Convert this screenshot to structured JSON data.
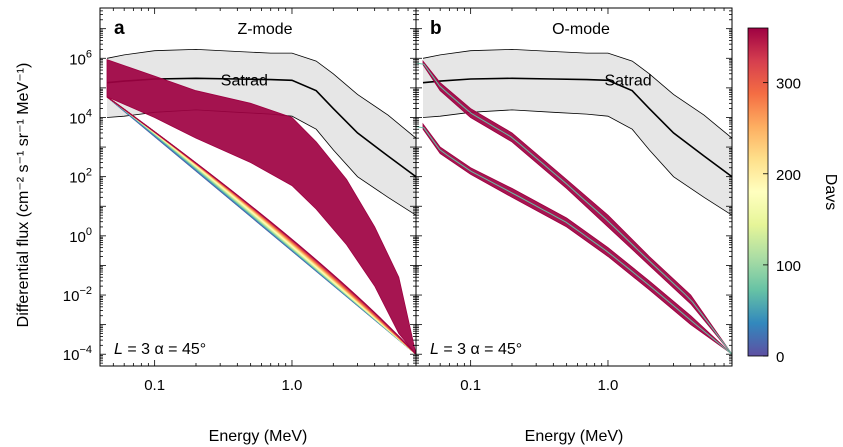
{
  "chart_data": {
    "type": "area",
    "y_axis_label": "Differential flux (cm⁻² s⁻¹ sr⁻¹ MeV⁻¹)",
    "x_scale": "log",
    "y_scale": "log",
    "xlim": [
      0.04,
      8
    ],
    "ylim": [
      4e-05,
      50000000
    ],
    "x_ticks": [
      {
        "value": 0.1,
        "label": "0.1"
      },
      {
        "value": 1,
        "label": "1.0"
      }
    ],
    "y_ticks": [
      {
        "value": 0.0001,
        "mant": "10",
        "exp": "−4"
      },
      {
        "value": 0.01,
        "mant": "10",
        "exp": "−2"
      },
      {
        "value": 1,
        "mant": "10",
        "exp": "0"
      },
      {
        "value": 100,
        "mant": "10",
        "exp": "2"
      },
      {
        "value": 10000,
        "mant": "10",
        "exp": "4"
      },
      {
        "value": 1000000,
        "mant": "10",
        "exp": "6"
      }
    ],
    "satrad": {
      "label": "Satrad",
      "label_position": [
        0.3,
        200000
      ],
      "energy": [
        0.045,
        0.06,
        0.1,
        0.2,
        0.4,
        0.7,
        1.0,
        1.5,
        2.0,
        3.0,
        5.0,
        8.0
      ],
      "upper": [
        1000000,
        1300000,
        1800000,
        2000000,
        1700000,
        1500000,
        1500000,
        800000,
        300000,
        60000,
        12000,
        2000
      ],
      "median": [
        150000,
        170000,
        200000,
        210000,
        200000,
        190000,
        180000,
        80000,
        20000,
        3000,
        500,
        100
      ],
      "lower": [
        10000,
        11000,
        15000,
        18000,
        15000,
        13000,
        11000,
        4000,
        800,
        100,
        20,
        5
      ]
    },
    "panels": [
      {
        "panel_label": "a",
        "title": "Z-mode",
        "x_label": "Energy (MeV)",
        "annotation": {
          "L_symbol": "L",
          "rest": " = 3 α = 45°"
        },
        "satrad_label_position": [
          0.45,
          120000
        ],
        "envelopes": [
          {
            "name": "final",
            "energy": [
              0.045,
              0.1,
              0.2,
              0.5,
              1.0,
              1.5,
              2.5,
              4.0,
              6.0,
              8.0
            ],
            "upper": [
              900000,
              250000,
              80000,
              30000,
              10000,
              1500,
              80,
              2,
              0.04,
              0.0001
            ],
            "lower": [
              50000,
              10000,
              2000,
              300,
              50,
              8,
              0.5,
              0.02,
              0.0005,
              0.0001
            ]
          }
        ],
        "curve_families": [
          {
            "name": "Davs 0–360",
            "start": [
              0.045,
              50000
            ],
            "end": [
              8.0,
              0.0001
            ],
            "count": 31,
            "knee_energy": [
              0.045,
              1.6
            ],
            "knee_flux": [
              50000,
              0.3
            ]
          }
        ]
      },
      {
        "panel_label": "b",
        "title": "O-mode",
        "x_label": "Energy (MeV)",
        "annotation": {
          "L_symbol": "L",
          "rest": " = 3 α = 45°"
        },
        "satrad_label_position": [
          1.4,
          120000
        ],
        "envelopes": [
          {
            "name": "upper band",
            "energy": [
              0.045,
              0.06,
              0.1,
              0.2,
              0.5,
              1.0,
              2.0,
              4.0,
              8.0
            ],
            "upper": [
              800000,
              150000,
              20000,
              3000,
              80,
              5,
              0.2,
              0.01,
              0.0001
            ],
            "lower": [
              600000,
              80000,
              10000,
              1500,
              40,
              2,
              0.1,
              0.005,
              0.0001
            ]
          },
          {
            "name": "lower band",
            "energy": [
              0.045,
              0.06,
              0.1,
              0.2,
              0.5,
              1.0,
              2.0,
              4.0,
              8.0
            ],
            "upper": [
              6000,
              1000,
              200,
              40,
              4,
              0.4,
              0.03,
              0.002,
              0.0001
            ],
            "lower": [
              4000,
              600,
              120,
              20,
              2,
              0.2,
              0.015,
              0.001,
              0.0001
            ]
          }
        ]
      }
    ],
    "colorbar": {
      "label": "Davs",
      "range": [
        0,
        360
      ],
      "ticks": [
        0,
        100,
        200,
        300
      ]
    }
  }
}
